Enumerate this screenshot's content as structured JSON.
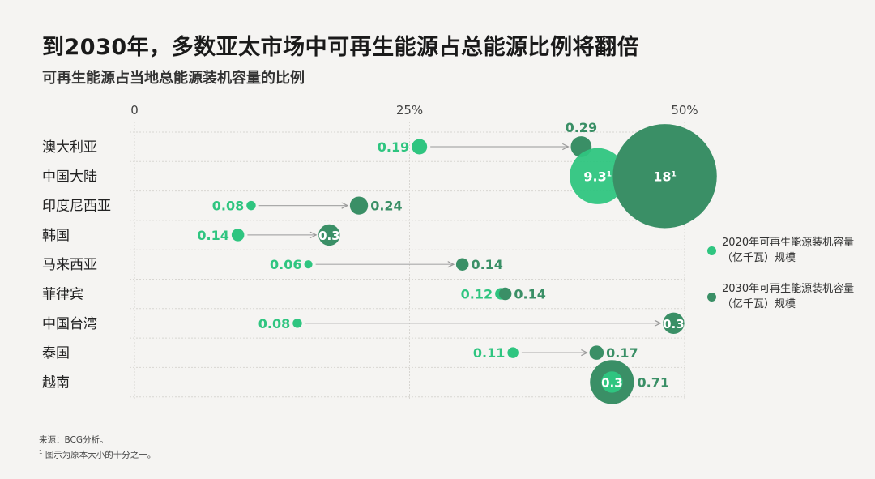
{
  "title": "到2030年，多数亚太市场中可再生能源占总能源比例将翻倍",
  "subtitle": "可再生能源占当地总能源装机容量的比例",
  "legend": [
    {
      "label": "2020年可再生能源装机容量（亿千瓦）规模",
      "color": "#2fc580"
    },
    {
      "label": "2030年可再生能源装机容量（亿千瓦）规模",
      "color": "#3a8f66"
    }
  ],
  "footer": {
    "source": "来源：BCG分析。",
    "note_mark": "1",
    "note": "图示为原本大小的十分之一。"
  },
  "chart_data": {
    "type": "scatter",
    "title": "到2030年，多数亚太市场中可再生能源占总能源比例将翻倍",
    "subtitle": "可再生能源占当地总能源装机容量的比例",
    "x_axis": {
      "range": [
        0,
        50
      ],
      "unit": "%",
      "ticks": [
        0,
        25,
        50
      ],
      "tick_labels": [
        "0",
        "25%",
        "50%"
      ],
      "grid": true
    },
    "y_axis": {
      "grid": true
    },
    "bubble_size": "renewable installed capacity (亿千瓦)",
    "categories": [
      "澳大利亚",
      "中国大陆",
      "印度尼西亚",
      "韩国",
      "马来西亚",
      "菲律宾",
      "中国台湾",
      "泰国",
      "越南"
    ],
    "series": [
      {
        "name": "2020年可再生能源装机容量（亿千瓦）规模",
        "color": "#2fc580",
        "share_pct": [
          25.9,
          42.1,
          10.6,
          9.4,
          15.8,
          33.3,
          14.8,
          34.4,
          43.4
        ],
        "size": [
          0.19,
          9.3,
          0.08,
          0.14,
          0.06,
          0.12,
          0.08,
          0.11,
          0.3
        ],
        "labels": [
          "0.19",
          "9.3",
          "0.08",
          "0.14",
          "0.06",
          "0.12",
          "0.08",
          "0.11",
          "0.3"
        ],
        "footnoted": [
          false,
          true,
          false,
          false,
          false,
          false,
          false,
          false,
          false
        ]
      },
      {
        "name": "2030年可再生能源装机容量（亿千瓦）规模",
        "color": "#3a8f66",
        "share_pct": [
          40.6,
          48.2,
          20.4,
          17.7,
          29.8,
          33.7,
          49.0,
          42.0,
          43.4
        ],
        "size": [
          0.29,
          18,
          0.24,
          0.3,
          0.14,
          0.14,
          0.3,
          0.17,
          0.71
        ],
        "labels": [
          "0.29",
          "18",
          "0.24",
          "0.3",
          "0.14",
          "0.14",
          "0.3",
          "0.17",
          "0.71"
        ],
        "footnoted": [
          false,
          true,
          false,
          false,
          false,
          false,
          false,
          false,
          false
        ]
      }
    ],
    "legend_position": "right"
  }
}
